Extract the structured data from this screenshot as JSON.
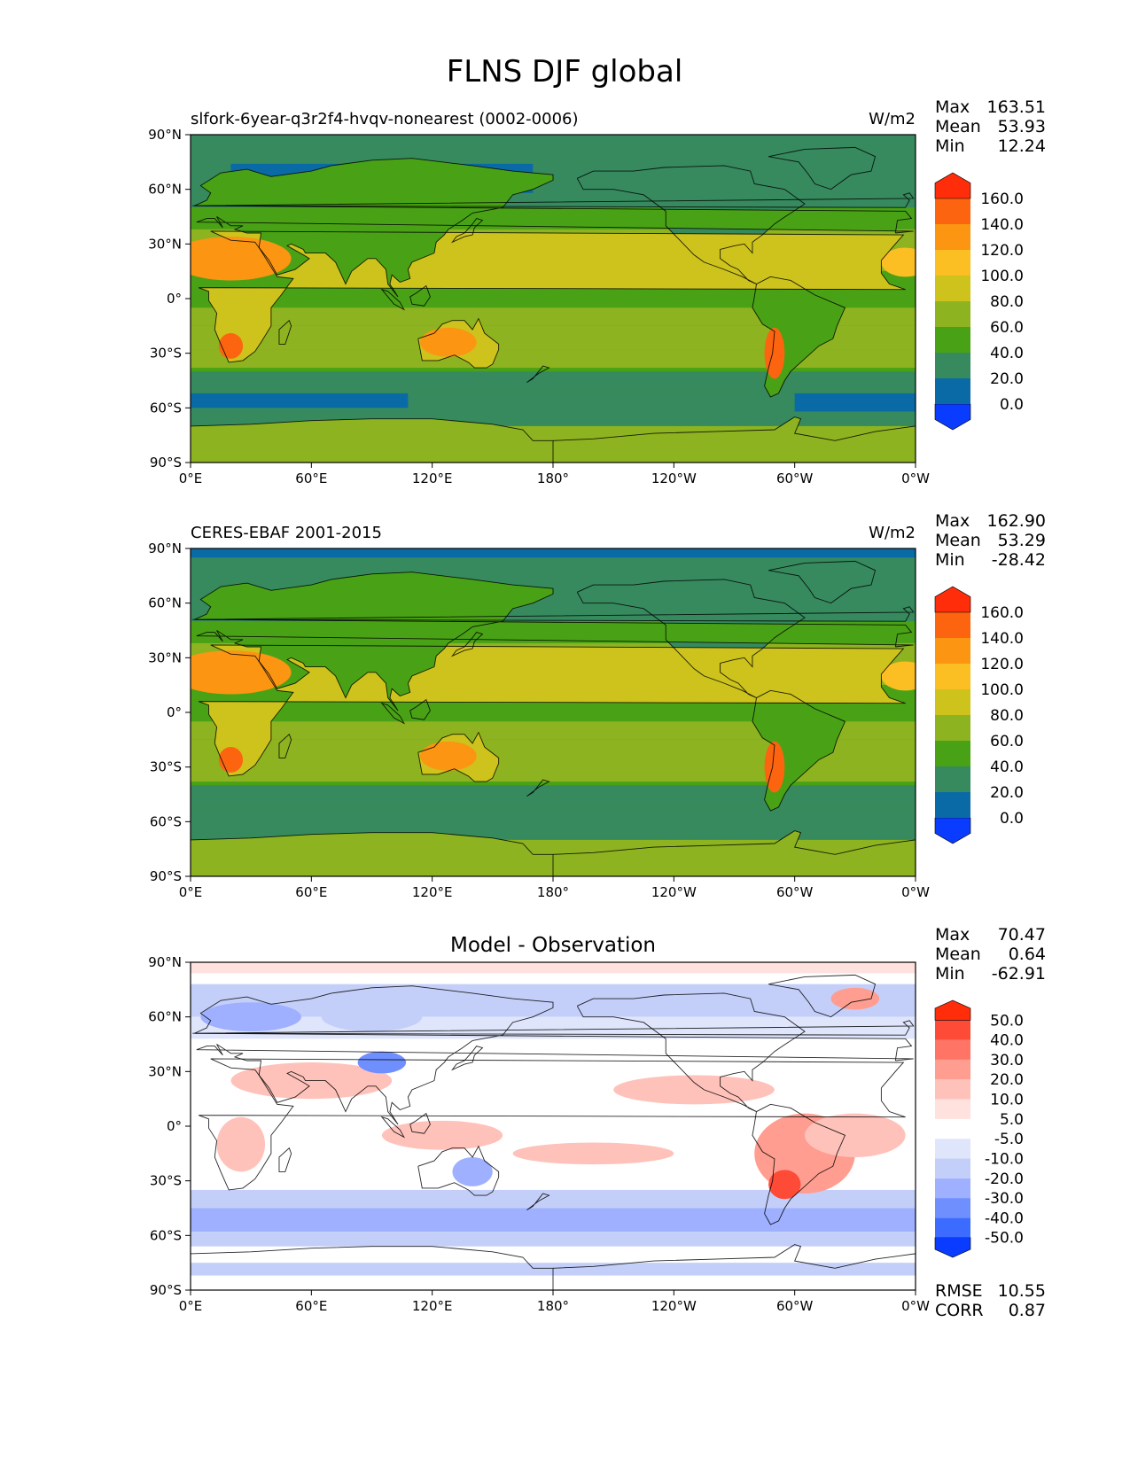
{
  "figure": {
    "title": "FLNS DJF global"
  },
  "axes": {
    "x_ticks": [
      "0°E",
      "60°E",
      "120°E",
      "180°",
      "120°W",
      "60°W",
      "0°W"
    ],
    "y_ticks": [
      "90°N",
      "60°N",
      "30°N",
      "0°",
      "30°S",
      "60°S",
      "90°S"
    ]
  },
  "chart_data": [
    {
      "type": "heatmap",
      "id": "test",
      "title": "slfork-6year-q3r2f4-hvqv-nonearest (0002-0006)",
      "units": "W/m2",
      "stats": {
        "max": "163.51",
        "mean": "53.93",
        "min": "12.24"
      },
      "stat_labels": {
        "max": "Max",
        "mean": "Mean",
        "min": "Min"
      },
      "xlim": [
        0,
        360
      ],
      "ylim": [
        -90,
        90
      ],
      "colorbar": {
        "levels": [
          "0.0",
          "20.0",
          "40.0",
          "60.0",
          "80.0",
          "100.0",
          "120.0",
          "140.0",
          "160.0"
        ],
        "colors": [
          "#0a3cff",
          "#0a6aa6",
          "#368a5e",
          "#49a215",
          "#8db320",
          "#cdc31c",
          "#fbbe23",
          "#fb9512",
          "#fd6410",
          "#ff2d0a"
        ]
      }
    },
    {
      "type": "heatmap",
      "id": "ref",
      "title": "CERES-EBAF 2001-2015",
      "units": "W/m2",
      "stats": {
        "max": "162.90",
        "mean": "53.29",
        "min": "-28.42"
      },
      "stat_labels": {
        "max": "Max",
        "mean": "Mean",
        "min": "Min"
      },
      "xlim": [
        0,
        360
      ],
      "ylim": [
        -90,
        90
      ],
      "colorbar": {
        "levels": [
          "0.0",
          "20.0",
          "40.0",
          "60.0",
          "80.0",
          "100.0",
          "120.0",
          "140.0",
          "160.0"
        ],
        "colors": [
          "#0a3cff",
          "#0a6aa6",
          "#368a5e",
          "#49a215",
          "#8db320",
          "#cdc31c",
          "#fbbe23",
          "#fb9512",
          "#fd6410",
          "#ff2d0a"
        ]
      }
    },
    {
      "type": "heatmap",
      "id": "diff",
      "title": "Model - Observation",
      "units": "",
      "stats": {
        "max": "70.47",
        "mean": "0.64",
        "min": "-62.91"
      },
      "stat_labels": {
        "max": "Max",
        "mean": "Mean",
        "min": "Min"
      },
      "metrics": {
        "rmse": "10.55",
        "corr": "0.87"
      },
      "metric_labels": {
        "rmse": "RMSE",
        "corr": "CORR"
      },
      "xlim": [
        0,
        360
      ],
      "ylim": [
        -90,
        90
      ],
      "colorbar": {
        "levels": [
          "-50.0",
          "-40.0",
          "-30.0",
          "-20.0",
          "-10.0",
          "-5.0",
          "5.0",
          "10.0",
          "20.0",
          "30.0",
          "40.0",
          "50.0"
        ],
        "colors": [
          "#0a3cff",
          "#3c6bff",
          "#6f8fff",
          "#9eb0ff",
          "#c4cff9",
          "#dfe5fb",
          "#ffffff",
          "#ffe1de",
          "#ffc2ba",
          "#ff9d90",
          "#ff7464",
          "#fd4b38",
          "#ff2d0a"
        ]
      }
    }
  ]
}
